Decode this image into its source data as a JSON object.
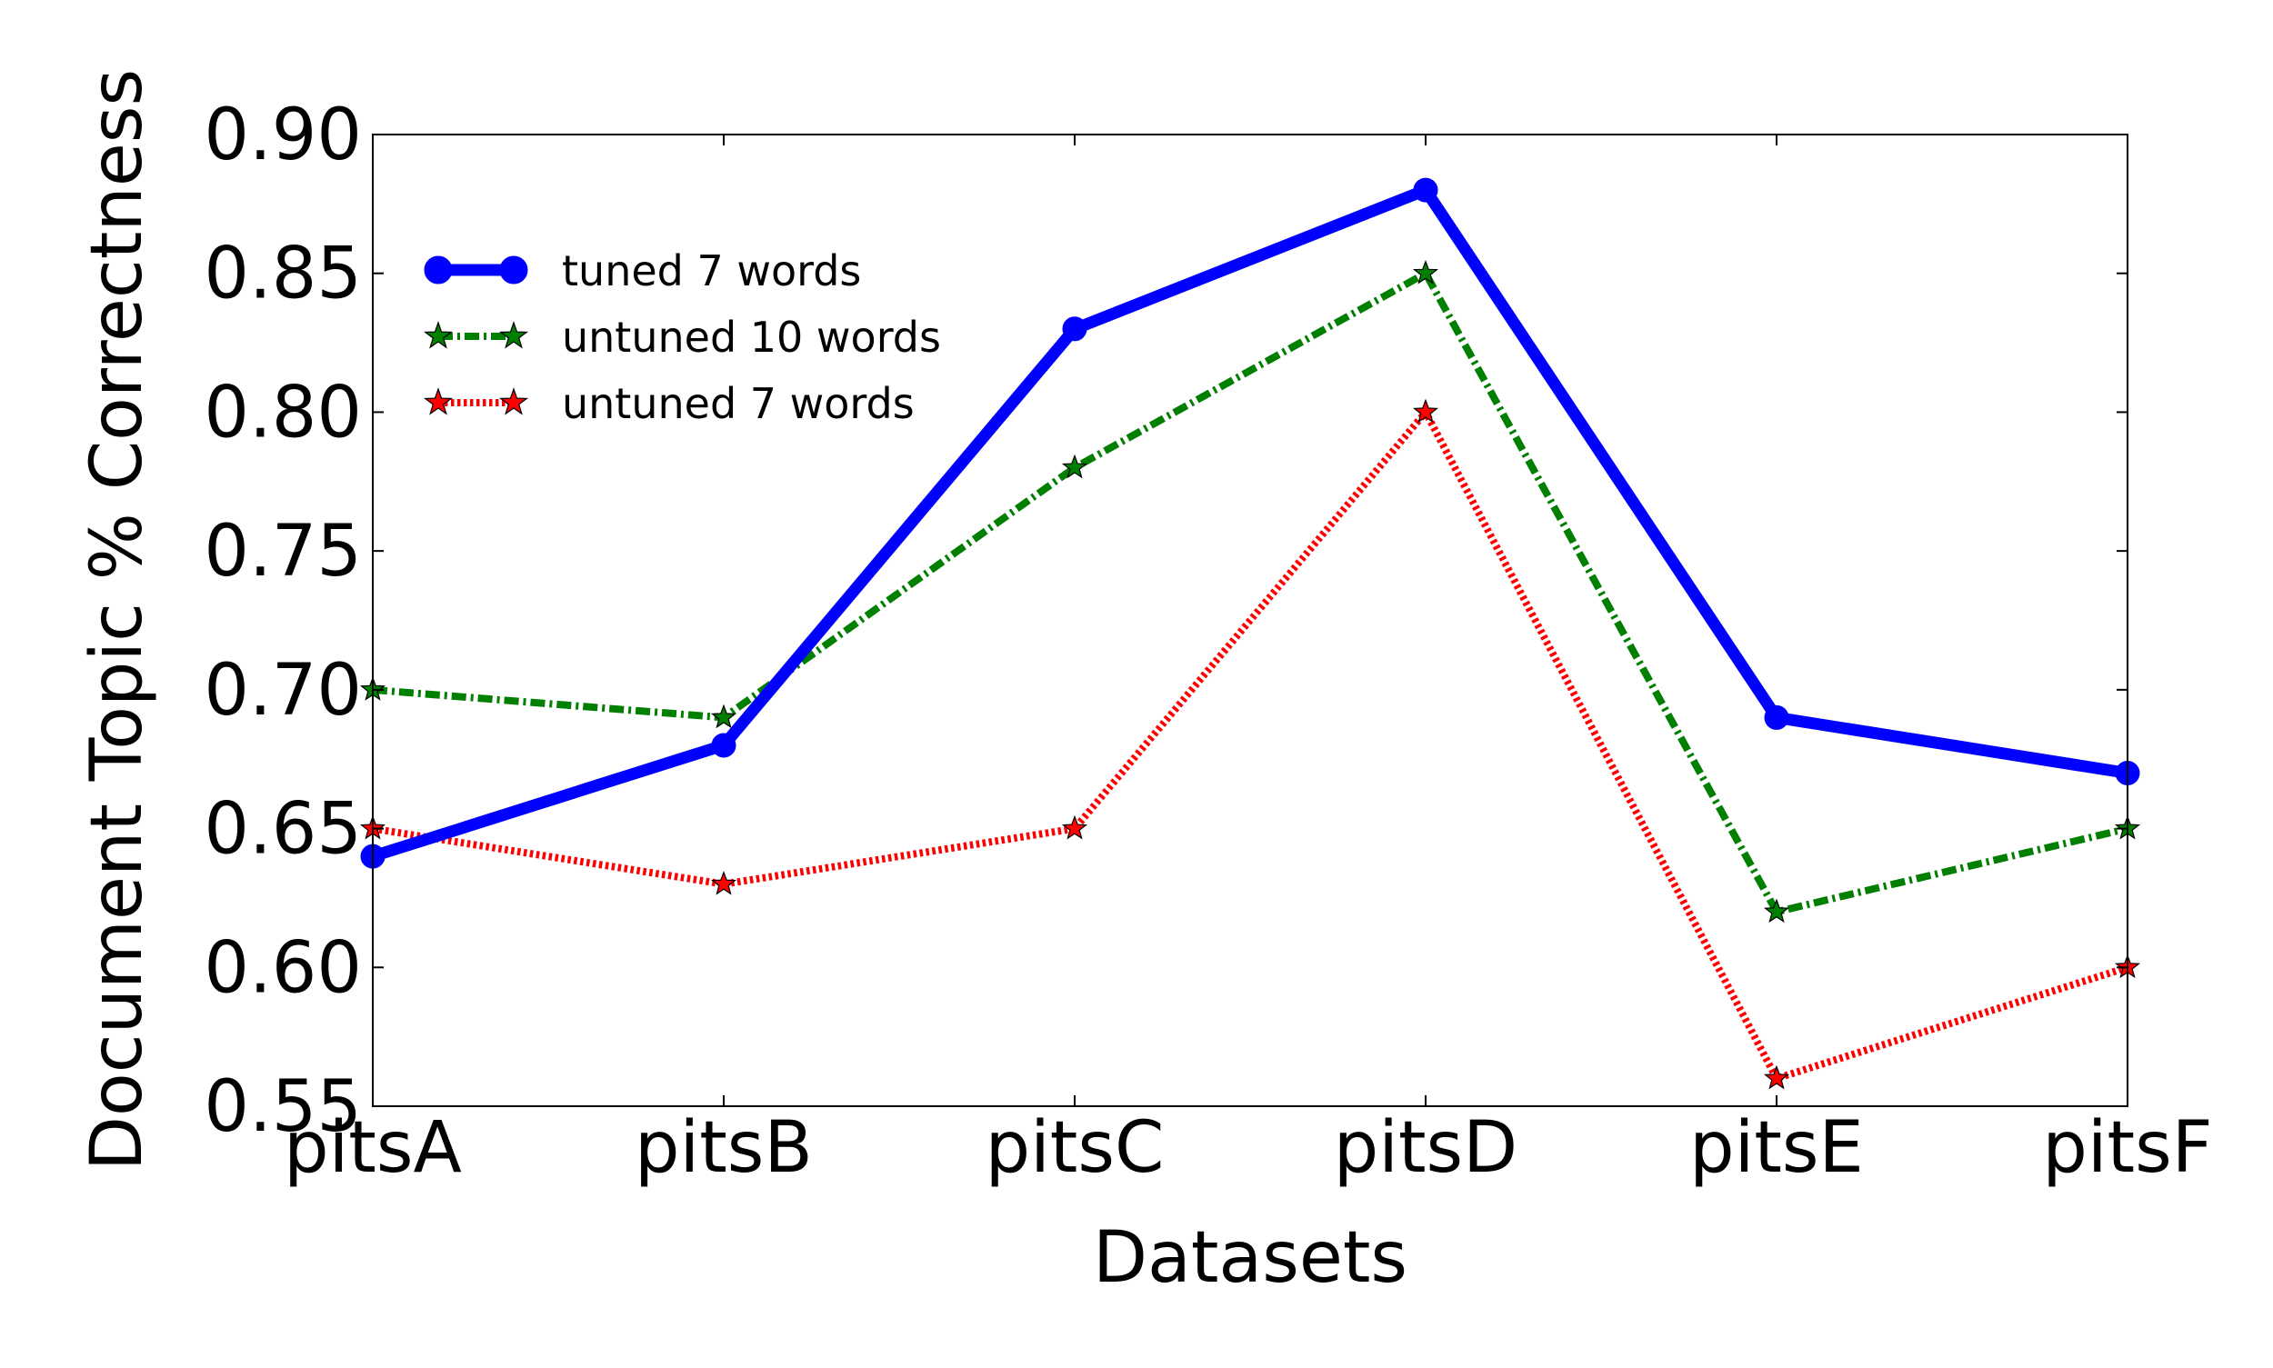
{
  "chart_data": {
    "type": "line",
    "xlabel": "Datasets",
    "ylabel": "Document Topic % Correctness",
    "categories": [
      "pitsA",
      "pitsB",
      "pitsC",
      "pitsD",
      "pitsE",
      "pitsF"
    ],
    "ylim": [
      0.55,
      0.9
    ],
    "yticks": [
      0.55,
      0.6,
      0.65,
      0.7,
      0.75,
      0.8,
      0.85,
      0.9
    ],
    "ytick_labels": [
      "0.55",
      "0.60",
      "0.65",
      "0.70",
      "0.75",
      "0.80",
      "0.85",
      "0.90"
    ],
    "grid": false,
    "legend_position": "upper-left",
    "series": [
      {
        "name": "tuned 7 words",
        "values": [
          0.64,
          0.68,
          0.83,
          0.88,
          0.69,
          0.67
        ],
        "color": "#0000ff",
        "line_style": "solid",
        "marker": "circle"
      },
      {
        "name": "untuned 10 words",
        "values": [
          0.7,
          0.69,
          0.78,
          0.85,
          0.62,
          0.65
        ],
        "color": "#007f00",
        "line_style": "dash-dot",
        "marker": "star"
      },
      {
        "name": "untuned 7 words",
        "values": [
          0.65,
          0.63,
          0.65,
          0.8,
          0.56,
          0.6
        ],
        "color": "#ff0000",
        "line_style": "dotted",
        "marker": "star"
      }
    ]
  }
}
